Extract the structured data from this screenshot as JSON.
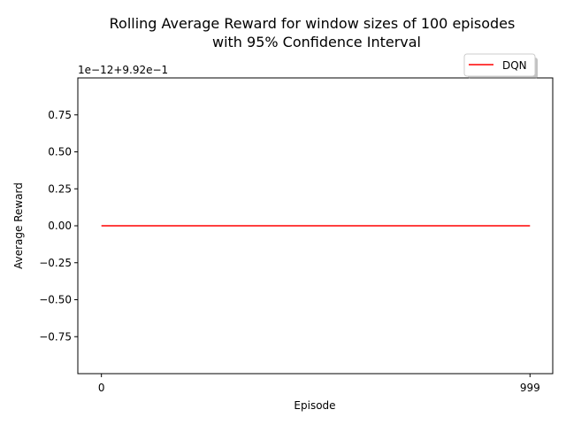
{
  "chart_data": {
    "type": "line",
    "title_lines": [
      "Rolling Average Reward for window sizes of 100 episodes",
      "with 95% Confidence Interval"
    ],
    "xlabel": "Episode",
    "ylabel": "Average Reward",
    "offset_text": "1e−12+9.92e−1",
    "xlim": [
      -55,
      1052
    ],
    "ylim": [
      -1.0,
      1.0
    ],
    "x_ticks": [
      {
        "value": 0,
        "label": "0"
      },
      {
        "value": 999,
        "label": "999"
      }
    ],
    "y_ticks": [
      {
        "value": 0.75,
        "label": "0.75"
      },
      {
        "value": 0.5,
        "label": "0.50"
      },
      {
        "value": 0.25,
        "label": "0.25"
      },
      {
        "value": 0.0,
        "label": "0.00"
      },
      {
        "value": -0.25,
        "label": "−0.25"
      },
      {
        "value": -0.5,
        "label": "−0.50"
      },
      {
        "value": -0.75,
        "label": "−0.75"
      }
    ],
    "series": [
      {
        "name": "DQN",
        "color": "#ff0000",
        "x": [
          0,
          999
        ],
        "y": [
          0.0,
          0.0
        ]
      }
    ],
    "legend_position": "upper-right-outside",
    "grid": false
  }
}
